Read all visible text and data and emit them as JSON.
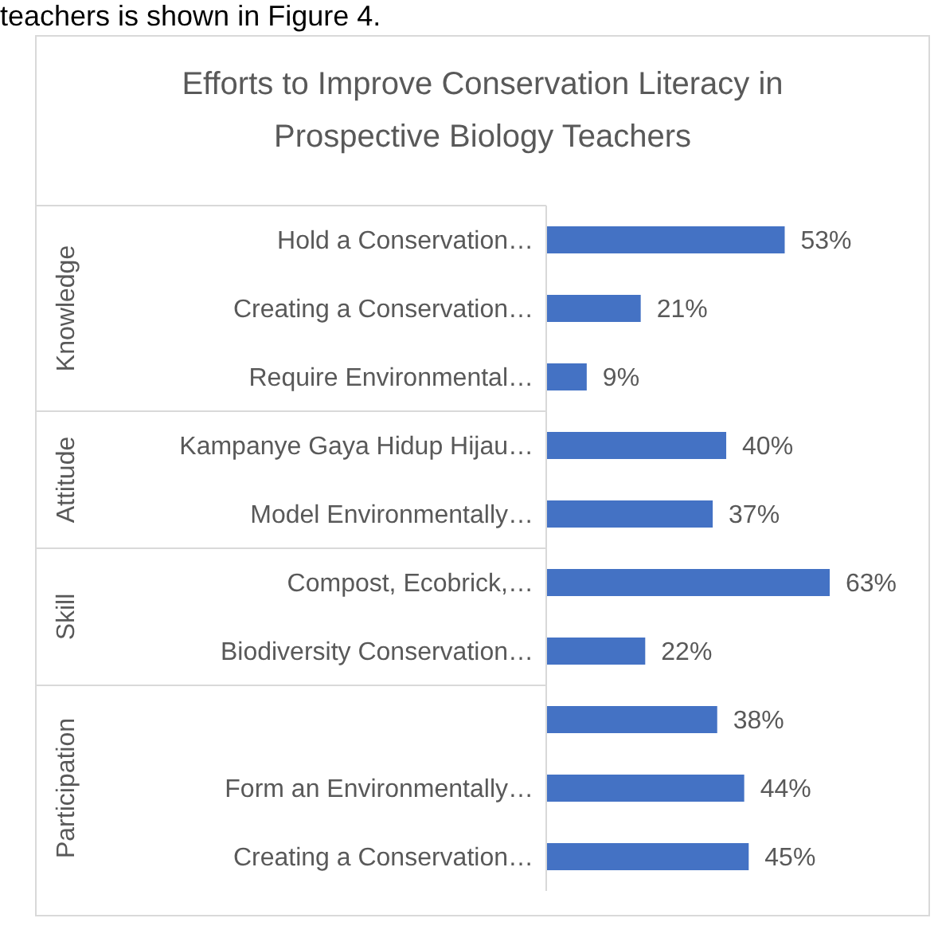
{
  "chart_data": {
    "type": "bar",
    "orientation": "horizontal",
    "title": "Efforts to Improve Conservation Literacy in Prospective Biology Teachers",
    "categories": [
      "Hold a Conservation…",
      "Creating a Conservation…",
      "Require Environmental…",
      "Kampanye Gaya Hidup Hijau…",
      "Model Environmentally…",
      "Compost, Ecobrick,…",
      "Biodiversity Conservation…",
      null,
      "Form an Environmentally…",
      "Creating a Conservation…"
    ],
    "values": [
      53,
      21,
      9,
      40,
      37,
      63,
      22,
      38,
      44,
      45
    ],
    "value_labels": [
      "53%",
      "21%",
      "9%",
      "40%",
      "37%",
      "63%",
      "22%",
      "38%",
      "44%",
      "45%"
    ],
    "color": "#4472c4",
    "tick_labels": "y",
    "grid": false,
    "legend": false,
    "annotations": [
      {
        "text": "teachers is shown in Figure 4."
      },
      "Knowledge",
      "Attitude",
      "Skill",
      "Participation"
    ]
  }
}
